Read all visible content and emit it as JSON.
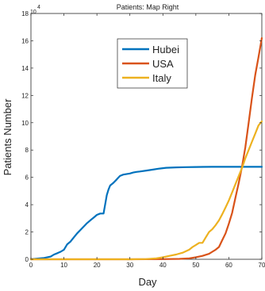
{
  "chart_data": {
    "type": "line",
    "title": "Patients: Map Right",
    "xlabel": "Day",
    "ylabel": "Patients Number",
    "y_exponent_base": "10",
    "y_exponent_power": "4",
    "xlim": [
      0,
      70
    ],
    "ylim": [
      0,
      180000
    ],
    "x_ticks": [
      0,
      10,
      20,
      30,
      40,
      50,
      60,
      70
    ],
    "x_tick_labels": [
      "0",
      "10",
      "20",
      "30",
      "40",
      "50",
      "60",
      "70"
    ],
    "y_ticks": [
      0,
      20000,
      40000,
      60000,
      80000,
      100000,
      120000,
      140000,
      160000,
      180000
    ],
    "y_tick_labels": [
      "0",
      "2",
      "4",
      "6",
      "8",
      "10",
      "12",
      "14",
      "16",
      "18"
    ],
    "grid": false,
    "legend_position": "top-center",
    "series": [
      {
        "name": "Hubei",
        "color": "#0072BD",
        "x": [
          0,
          2,
          4,
          6,
          7,
          8,
          9,
          10,
          11,
          12,
          13,
          14,
          15,
          16,
          17,
          18,
          19,
          20,
          21,
          22,
          22.5,
          23,
          23.5,
          24,
          25,
          26,
          27,
          28,
          30,
          31,
          32,
          33,
          35,
          37,
          39,
          41,
          44,
          47,
          50,
          55,
          60,
          65,
          70
        ],
        "y": [
          0,
          500,
          1000,
          2000,
          3500,
          4500,
          5500,
          7000,
          11000,
          13000,
          16000,
          19000,
          21500,
          24000,
          26500,
          28500,
          30500,
          32500,
          33500,
          33500,
          40000,
          47000,
          51000,
          54000,
          56000,
          58500,
          61000,
          62000,
          62800,
          63500,
          64000,
          64300,
          65000,
          65700,
          66400,
          67000,
          67300,
          67500,
          67600,
          67700,
          67700,
          67700,
          67700
        ]
      },
      {
        "name": "USA",
        "color": "#D95319",
        "x": [
          0,
          30,
          40,
          45,
          48,
          50,
          52,
          54,
          55,
          56,
          57,
          58,
          59,
          60,
          61,
          62,
          63,
          64,
          65,
          66,
          67,
          68,
          69,
          70
        ],
        "y": [
          0,
          0,
          100,
          300,
          700,
          1500,
          2500,
          4000,
          5500,
          7000,
          9000,
          14000,
          19000,
          26000,
          34000,
          45000,
          56000,
          68000,
          82000,
          100000,
          118000,
          135000,
          148000,
          162000
        ]
      },
      {
        "name": "Italy",
        "color": "#EDB120",
        "x": [
          0,
          30,
          35,
          38,
          40,
          42,
          44,
          46,
          48,
          49,
          50,
          51,
          52,
          53,
          54,
          55,
          56,
          57,
          58,
          59,
          60,
          61,
          62,
          63,
          64,
          65,
          66,
          67,
          68,
          69,
          70
        ],
        "y": [
          0,
          0,
          200,
          700,
          1500,
          2500,
          3500,
          4800,
          7000,
          9000,
          10500,
          12000,
          12000,
          16000,
          20000,
          22000,
          25000,
          28500,
          33000,
          38000,
          43000,
          49000,
          55000,
          61000,
          67000,
          74000,
          80000,
          86000,
          92000,
          98000,
          101000
        ]
      }
    ]
  }
}
